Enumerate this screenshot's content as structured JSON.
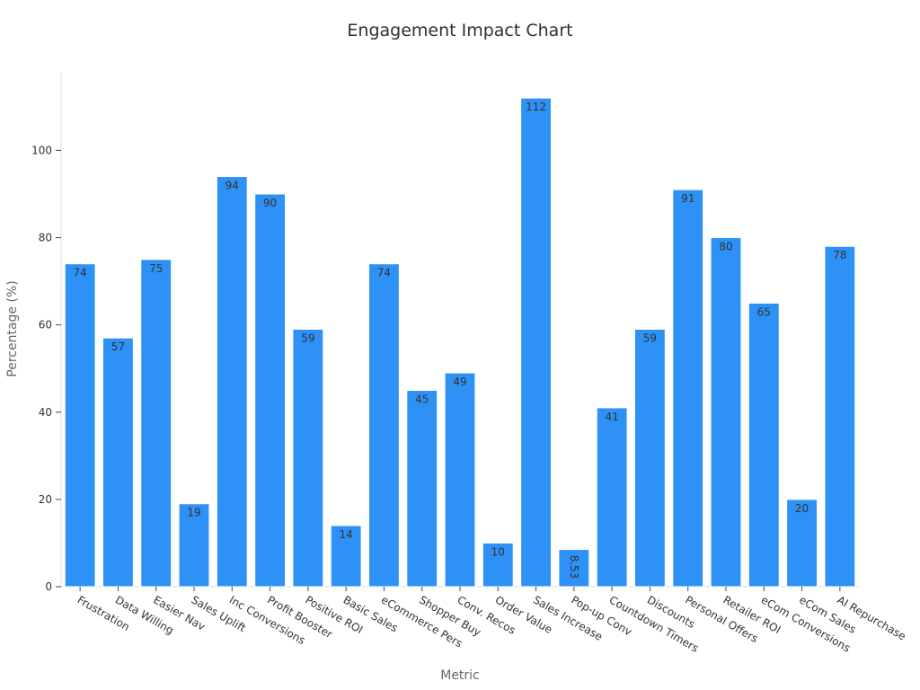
{
  "chart_data": {
    "type": "bar",
    "title": "Engagement Impact Chart",
    "xlabel": "Metric",
    "ylabel": "Percentage (%)",
    "ylim": [
      0,
      118
    ],
    "yticks": [
      0,
      20,
      40,
      60,
      80,
      100
    ],
    "grid": false,
    "bar_color": "#2d91f6",
    "categories": [
      "Frustration",
      "Data Willing",
      "Easier Nav",
      "Sales Uplift",
      "Inc Conversions",
      "Profit Booster",
      "Positive ROI",
      "Basic Sales",
      "eCommerce Pers",
      "Shopper Buy",
      "Conv. Recos",
      "Order Value",
      "Sales Increase",
      "Pop-up Conv",
      "Countdown Timers",
      "Discounts",
      "Personal Offers",
      "Retailer ROI",
      "eCom Conversions",
      "eCom Sales",
      "AI Repurchase"
    ],
    "values": [
      74,
      57,
      75,
      19,
      94,
      90,
      59,
      14,
      74,
      45,
      49,
      10,
      112,
      8.53,
      41,
      59,
      91,
      80,
      65,
      20,
      78
    ],
    "value_labels": [
      "74",
      "57",
      "75",
      "19",
      "94",
      "90",
      "59",
      "14",
      "74",
      "45",
      "49",
      "10",
      "112",
      "8.53",
      "41",
      "59",
      "91",
      "80",
      "65",
      "20",
      "78"
    ]
  }
}
